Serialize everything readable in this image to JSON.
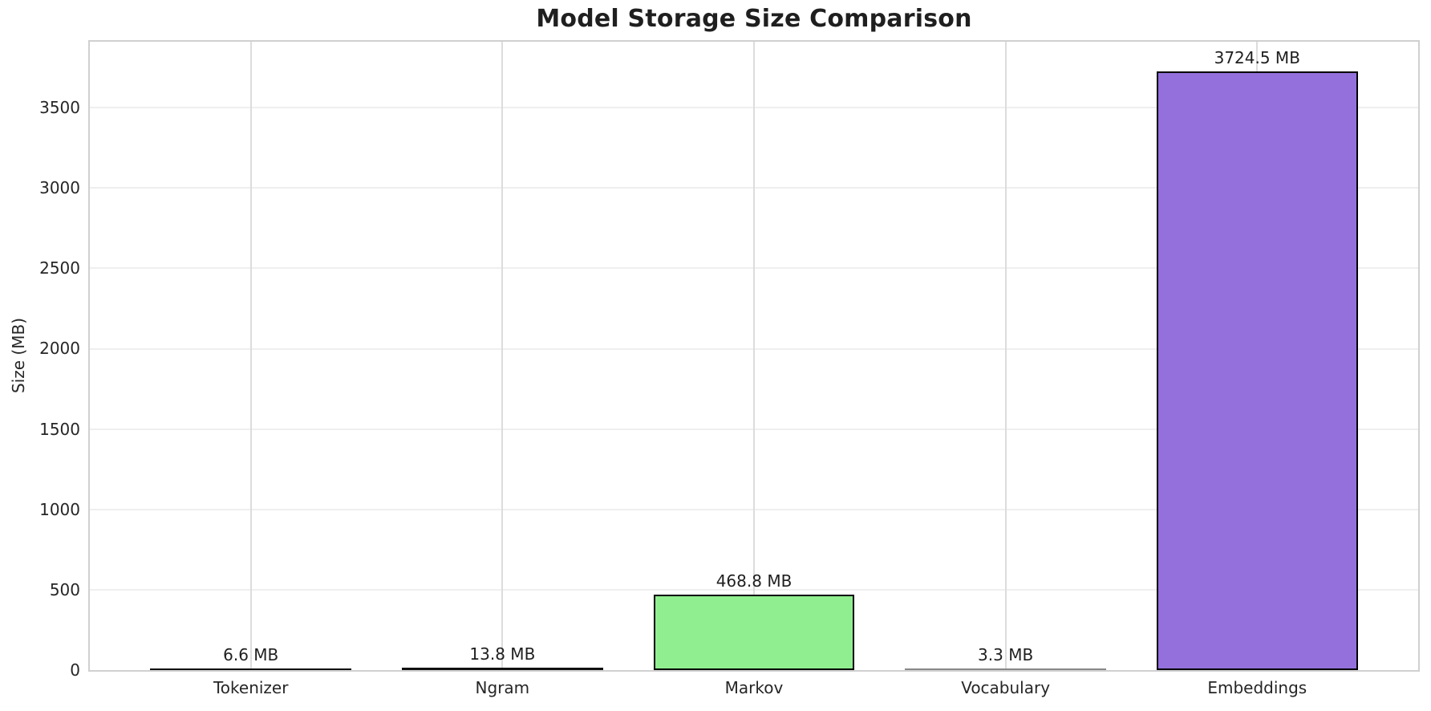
{
  "chart_data": {
    "type": "bar",
    "title": "Model Storage Size Comparison",
    "categories": [
      "Tokenizer",
      "Ngram",
      "Markov",
      "Vocabulary",
      "Embeddings"
    ],
    "values": [
      6.6,
      13.8,
      468.8,
      3.3,
      3724.5
    ],
    "bar_labels": [
      "6.6 MB",
      "13.8 MB",
      "468.8 MB",
      "3.3 MB",
      "3724.5 MB"
    ],
    "bar_fills": [
      "#111111",
      "#111111",
      "#90EE90",
      "#888888",
      "#9370DB"
    ],
    "bar_edge_color": "#000000",
    "xlabel": "",
    "ylabel": "Size (MB)",
    "yticks": [
      0,
      500,
      1000,
      1500,
      2000,
      2500,
      3000,
      3500
    ],
    "ylim": [
      0,
      3910
    ],
    "grid": true,
    "legend": false
  },
  "style": {
    "background": "#ffffff",
    "horizontal_grid_color": "#efefef",
    "vertical_grid_color": "#dcdcdc",
    "spine_color": "#d0d0d0",
    "text_color": "#262626",
    "title_color": "#1f1f1f"
  }
}
